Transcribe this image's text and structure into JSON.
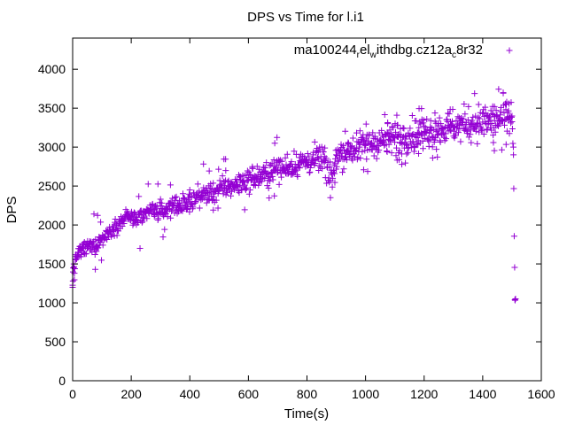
{
  "chart_data": {
    "type": "scatter",
    "title": "DPS vs Time for l.i1",
    "xlabel": "Time(s)",
    "ylabel": "DPS",
    "xlim": [
      0,
      1600
    ],
    "ylim": [
      0,
      4400
    ],
    "xticks": [
      0,
      200,
      400,
      600,
      800,
      1000,
      1200,
      1400,
      1600
    ],
    "yticks": [
      0,
      500,
      1000,
      1500,
      2000,
      2500,
      3000,
      3500,
      4000
    ],
    "grid": false,
    "legend_position": "top-right",
    "marker": "plus",
    "color": "#9400d3",
    "series": [
      {
        "name_parts": [
          "ma100244",
          "r",
          "el",
          "w",
          "ithdbg.cz12a",
          "c",
          "8r32"
        ],
        "points_representative": [
          [
            0,
            1200
          ],
          [
            1,
            1280
          ],
          [
            2,
            1450
          ],
          [
            4,
            1500
          ],
          [
            6,
            1380
          ],
          [
            10,
            1550
          ],
          [
            15,
            1600
          ],
          [
            20,
            1650
          ],
          [
            25,
            1700
          ],
          [
            30,
            1620
          ],
          [
            35,
            1750
          ],
          [
            40,
            1780
          ],
          [
            50,
            1700
          ],
          [
            60,
            1680
          ],
          [
            70,
            1750
          ],
          [
            80,
            1720
          ],
          [
            90,
            1800
          ],
          [
            100,
            1820
          ],
          [
            110,
            1850
          ],
          [
            120,
            1900
          ],
          [
            130,
            1920
          ],
          [
            140,
            1980
          ],
          [
            150,
            2000
          ],
          [
            160,
            2020
          ],
          [
            170,
            2050
          ],
          [
            180,
            2100
          ],
          [
            190,
            2120
          ],
          [
            200,
            2150
          ],
          [
            210,
            2050
          ],
          [
            220,
            2100
          ],
          [
            230,
            1700
          ],
          [
            240,
            2100
          ],
          [
            250,
            2150
          ],
          [
            260,
            2180
          ],
          [
            280,
            2200
          ],
          [
            300,
            2150
          ],
          [
            320,
            2200
          ],
          [
            340,
            2250
          ],
          [
            360,
            2280
          ],
          [
            380,
            2220
          ],
          [
            400,
            2300
          ],
          [
            420,
            2350
          ],
          [
            440,
            2380
          ],
          [
            460,
            2400
          ],
          [
            480,
            2420
          ],
          [
            500,
            2450
          ],
          [
            520,
            2480
          ],
          [
            540,
            2500
          ],
          [
            560,
            2520
          ],
          [
            580,
            2550
          ],
          [
            600,
            2580
          ],
          [
            620,
            2600
          ],
          [
            640,
            2620
          ],
          [
            660,
            2650
          ],
          [
            680,
            2680
          ],
          [
            690,
            3050
          ],
          [
            700,
            2700
          ],
          [
            720,
            2720
          ],
          [
            740,
            2750
          ],
          [
            760,
            2780
          ],
          [
            780,
            2800
          ],
          [
            800,
            2820
          ],
          [
            820,
            2830
          ],
          [
            840,
            2850
          ],
          [
            860,
            2880
          ],
          [
            880,
            2350
          ],
          [
            900,
            2900
          ],
          [
            920,
            2920
          ],
          [
            940,
            2950
          ],
          [
            960,
            2980
          ],
          [
            980,
            3000
          ],
          [
            1000,
            3020
          ],
          [
            1020,
            3050
          ],
          [
            1040,
            3070
          ],
          [
            1060,
            3080
          ],
          [
            1080,
            3100
          ],
          [
            1100,
            3120
          ],
          [
            1120,
            3130
          ],
          [
            1140,
            3150
          ],
          [
            1160,
            3160
          ],
          [
            1180,
            3180
          ],
          [
            1200,
            3200
          ],
          [
            1220,
            3210
          ],
          [
            1240,
            3220
          ],
          [
            1260,
            3240
          ],
          [
            1280,
            3250
          ],
          [
            1300,
            3270
          ],
          [
            1320,
            3280
          ],
          [
            1340,
            3290
          ],
          [
            1360,
            3300
          ],
          [
            1380,
            3310
          ],
          [
            1400,
            3320
          ],
          [
            1420,
            3330
          ],
          [
            1440,
            3340
          ],
          [
            1460,
            3350
          ],
          [
            1470,
            3700
          ],
          [
            1480,
            3360
          ],
          [
            1490,
            3380
          ],
          [
            1500,
            3400
          ],
          [
            1505,
            2900
          ],
          [
            1510,
            1040
          ]
        ]
      }
    ]
  }
}
